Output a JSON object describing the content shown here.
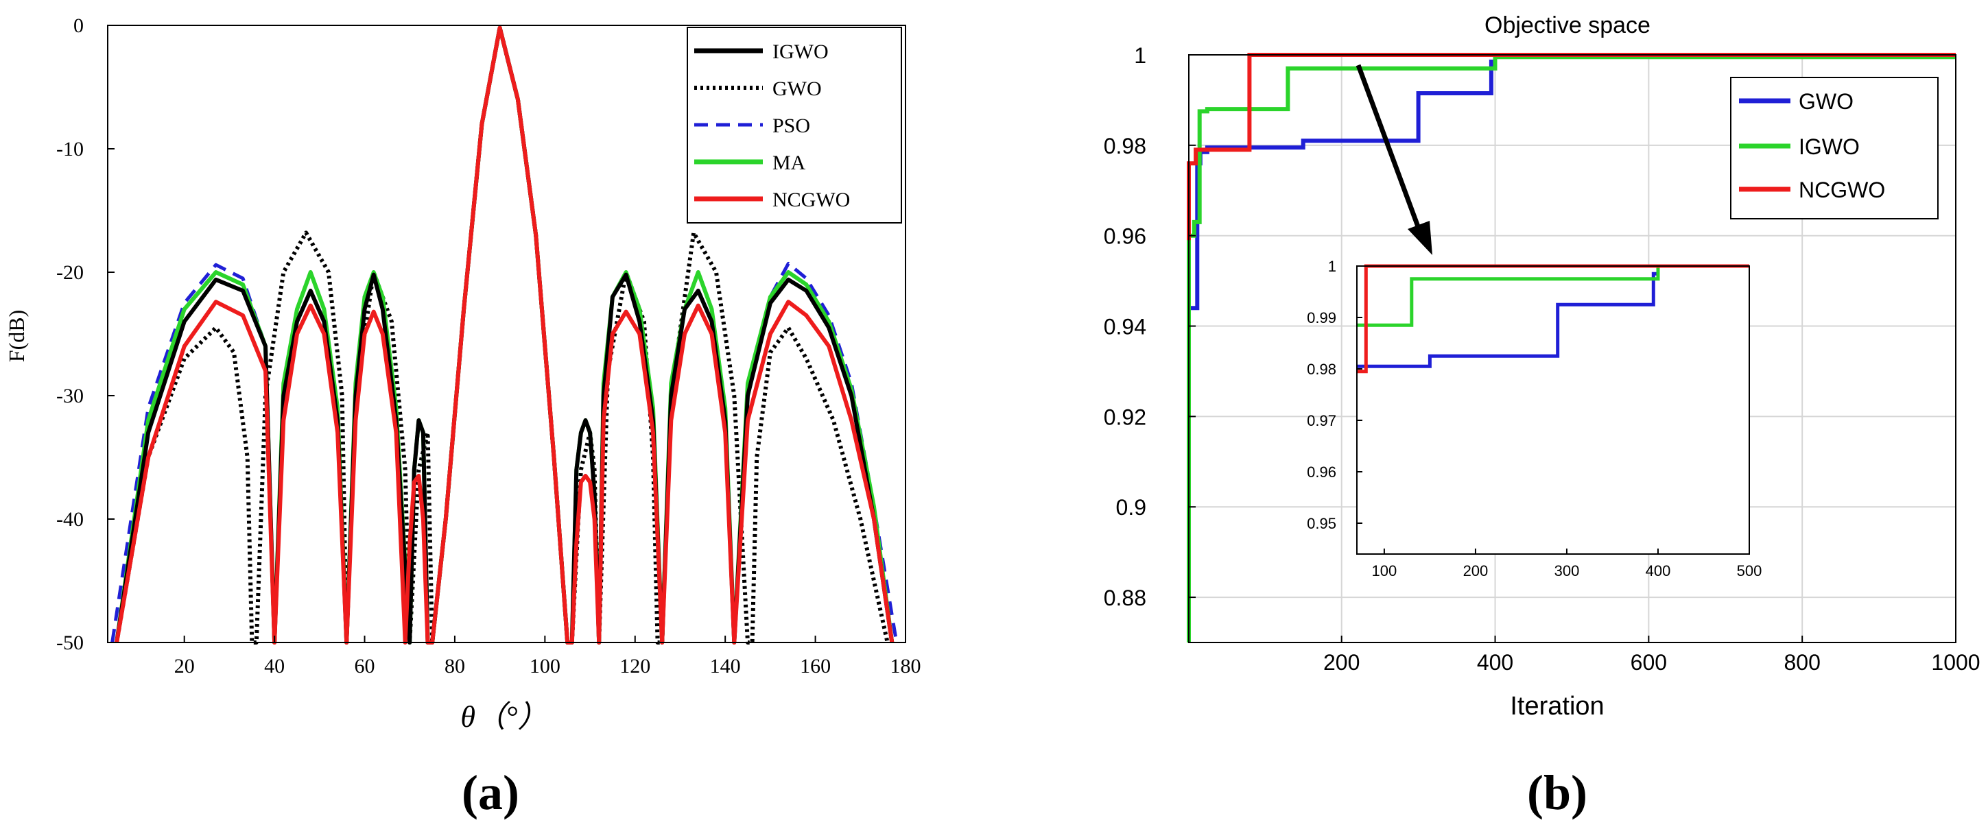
{
  "chart_data": [
    {
      "id": "a",
      "type": "line",
      "panel_label": "(a)",
      "title": "",
      "xlabel": "θ（°）",
      "ylabel": "F(dB)",
      "xlim": [
        3,
        180
      ],
      "ylim": [
        -50,
        0
      ],
      "xticks": [
        20,
        40,
        60,
        80,
        100,
        120,
        140,
        160,
        180
      ],
      "yticks": [
        0,
        -10,
        -20,
        -30,
        -40,
        -50
      ],
      "legend_position": "top-right",
      "series": [
        {
          "name": "IGWO",
          "color": "#000000",
          "dash": "solid",
          "width": 6,
          "x": [
            5,
            12,
            20,
            27,
            33,
            38,
            40,
            42,
            45,
            48,
            51,
            54,
            56,
            58,
            60,
            62,
            64,
            67,
            70,
            71,
            72,
            73,
            74,
            75,
            78,
            82,
            86,
            90,
            94,
            98,
            102,
            105,
            106,
            107,
            108,
            109,
            110,
            111,
            112,
            113,
            115,
            118,
            121,
            124,
            126,
            128,
            131,
            134,
            137,
            140,
            142,
            145,
            150,
            154,
            158,
            163,
            168,
            173,
            177
          ],
          "y": [
            -50,
            -33,
            -24,
            -20.6,
            -21.5,
            -26,
            -50,
            -30,
            -24,
            -21.5,
            -24,
            -32,
            -50,
            -30,
            -23,
            -20.2,
            -23,
            -32,
            -50,
            -36,
            -32,
            -33,
            -50,
            -50,
            -40,
            -23,
            -8,
            -0.2,
            -6,
            -17,
            -35,
            -50,
            -50,
            -36,
            -33,
            -32,
            -33,
            -38,
            -50,
            -30,
            -22,
            -20.2,
            -24,
            -32,
            -50,
            -30,
            -23,
            -21.5,
            -24,
            -32,
            -50,
            -30,
            -22.5,
            -20.6,
            -21.5,
            -24.5,
            -30,
            -40,
            -50
          ]
        },
        {
          "name": "GWO",
          "color": "#000000",
          "dash": "dotted",
          "width": 6,
          "x": [
            5,
            12,
            20,
            27,
            31,
            34,
            35,
            36,
            38,
            42,
            47,
            52,
            55,
            56,
            58,
            62,
            66,
            69,
            70,
            72,
            74,
            75,
            78,
            82,
            86,
            90,
            94,
            98,
            102,
            105,
            106,
            108,
            110,
            111,
            112,
            114,
            118,
            122,
            124,
            125,
            126,
            128,
            133,
            138,
            142,
            145,
            146,
            147,
            150,
            154,
            158,
            164,
            170,
            176
          ],
          "y": [
            -50,
            -35,
            -27,
            -24.5,
            -26.5,
            -35,
            -50,
            -50,
            -30,
            -20,
            -16.8,
            -20,
            -30,
            -50,
            -30,
            -20,
            -24,
            -36,
            -50,
            -36,
            -33,
            -50,
            -40,
            -23,
            -8,
            -0.2,
            -6,
            -17,
            -35,
            -50,
            -50,
            -36,
            -33,
            -36,
            -50,
            -28,
            -20,
            -24,
            -35,
            -50,
            -50,
            -30,
            -16.8,
            -20,
            -30,
            -50,
            -50,
            -35,
            -26.5,
            -24.5,
            -27,
            -32,
            -40,
            -50
          ]
        },
        {
          "name": "PSO",
          "color": "#1f1fd6",
          "dash": "dashed",
          "width": 5,
          "x": [
            4,
            12,
            20,
            27,
            33,
            38,
            40,
            42,
            45,
            48,
            51,
            54,
            56,
            58,
            60,
            62,
            64,
            67,
            70,
            71,
            72,
            73,
            74,
            75,
            78,
            82,
            86,
            90,
            94,
            98,
            102,
            105,
            106,
            107,
            108,
            109,
            110,
            111,
            112,
            113,
            115,
            118,
            121,
            124,
            126,
            128,
            131,
            134,
            137,
            140,
            142,
            145,
            150,
            154,
            158,
            163,
            168,
            173,
            178
          ],
          "y": [
            -50,
            -31,
            -22.5,
            -19.4,
            -20.5,
            -26,
            -50,
            -29,
            -23,
            -20,
            -23,
            -31,
            -50,
            -29,
            -22,
            -20,
            -22,
            -31,
            -50,
            -36,
            -32,
            -33,
            -50,
            -50,
            -40,
            -23,
            -8,
            -0.2,
            -6,
            -17,
            -35,
            -50,
            -50,
            -36,
            -33,
            -32,
            -33,
            -38,
            -50,
            -29,
            -22,
            -20,
            -23,
            -31,
            -50,
            -29,
            -23,
            -20,
            -23,
            -31,
            -50,
            -29,
            -22,
            -19.3,
            -20.5,
            -23.5,
            -29,
            -39,
            -50
          ]
        },
        {
          "name": "MA",
          "color": "#2bd42b",
          "dash": "solid",
          "width": 6,
          "x": [
            5,
            12,
            20,
            27,
            33,
            38,
            40,
            42,
            45,
            48,
            51,
            54,
            56,
            58,
            60,
            62,
            64,
            67,
            70,
            71,
            72,
            73,
            74,
            75,
            78,
            82,
            86,
            90,
            94,
            98,
            102,
            105,
            106,
            107,
            108,
            109,
            110,
            111,
            112,
            113,
            115,
            118,
            121,
            124,
            126,
            128,
            131,
            134,
            137,
            140,
            142,
            145,
            150,
            154,
            158,
            163,
            168,
            173,
            177
          ],
          "y": [
            -50,
            -32,
            -23,
            -20,
            -21,
            -26,
            -50,
            -29,
            -23,
            -20,
            -23,
            -31,
            -50,
            -29,
            -22,
            -20,
            -22,
            -31,
            -50,
            -36,
            -32,
            -33,
            -50,
            -50,
            -40,
            -23,
            -8,
            -0.2,
            -6,
            -17,
            -35,
            -50,
            -50,
            -36,
            -33,
            -32,
            -33,
            -38,
            -50,
            -29,
            -22,
            -20,
            -23,
            -31,
            -50,
            -29,
            -23,
            -20,
            -23,
            -31,
            -50,
            -29,
            -22,
            -20,
            -21,
            -24,
            -29.5,
            -39,
            -50
          ]
        },
        {
          "name": "NCGWO",
          "color": "#ee1c1c",
          "dash": "solid",
          "width": 6,
          "x": [
            5,
            12,
            20,
            27,
            33,
            38,
            40,
            42,
            45,
            48,
            51,
            54,
            56,
            58,
            60,
            62,
            64,
            67,
            69,
            70,
            71,
            72,
            73,
            74,
            75,
            78,
            82,
            86,
            90,
            94,
            98,
            102,
            105,
            106,
            107,
            108,
            109,
            110,
            111,
            112,
            113,
            115,
            118,
            121,
            124,
            126,
            128,
            131,
            134,
            137,
            140,
            142,
            145,
            150,
            154,
            158,
            163,
            168,
            173,
            177
          ],
          "y": [
            -50,
            -35,
            -26,
            -22.4,
            -23.5,
            -28,
            -50,
            -32,
            -25,
            -22.7,
            -25,
            -33,
            -50,
            -32,
            -25,
            -23.2,
            -25,
            -33,
            -50,
            -42,
            -37,
            -36.5,
            -40,
            -50,
            -50,
            -40,
            -23,
            -8,
            -0.2,
            -6,
            -17,
            -35,
            -50,
            -50,
            -42,
            -37,
            -36.5,
            -37,
            -40,
            -50,
            -32,
            -25,
            -23.2,
            -25,
            -33,
            -50,
            -32,
            -25,
            -22.7,
            -25,
            -33,
            -50,
            -32,
            -25,
            -22.4,
            -23.5,
            -26,
            -32,
            -40,
            -50
          ]
        }
      ]
    },
    {
      "id": "b",
      "type": "line",
      "panel_label": "(b)",
      "title": "Objective space",
      "xlabel": "Iteration",
      "ylabel": "",
      "xlim": [
        1,
        1000
      ],
      "ylim": [
        0.87,
        1.0
      ],
      "xticks": [
        200,
        400,
        600,
        800,
        1000
      ],
      "yticks": [
        1,
        0.98,
        0.96,
        0.94,
        0.92,
        0.9,
        0.88
      ],
      "ytick_labels": [
        "1",
        "0.98",
        "0.96",
        "0.94",
        "0.92",
        "0.9",
        "0.88"
      ],
      "grid": true,
      "legend_position": "top-right",
      "series": [
        {
          "name": "GWO",
          "color": "#1f1fd6",
          "width": 6,
          "x": [
            1,
            1,
            12,
            12,
            16,
            16,
            25,
            25,
            150,
            150,
            300,
            300,
            395,
            395,
            400,
            400,
            1000
          ],
          "y": [
            0.921,
            0.944,
            0.944,
            0.976,
            0.976,
            0.9785,
            0.9785,
            0.9795,
            0.9795,
            0.981,
            0.981,
            0.9915,
            0.9915,
            0.9985,
            0.9985,
            1.0,
            1.0
          ]
        },
        {
          "name": "IGWO",
          "color": "#2bd42b",
          "width": 6,
          "x": [
            1,
            1,
            8,
            8,
            15,
            15,
            25,
            25,
            130,
            130,
            400,
            400,
            1000
          ],
          "y": [
            0.87,
            0.96,
            0.96,
            0.963,
            0.963,
            0.9875,
            0.9875,
            0.988,
            0.988,
            0.997,
            0.997,
            0.9995,
            0.9995
          ]
        },
        {
          "name": "NCGWO",
          "color": "#ee1c1c",
          "width": 6,
          "x": [
            1,
            1,
            10,
            10,
            70,
            70,
            80,
            80,
            1000
          ],
          "y": [
            0.959,
            0.976,
            0.976,
            0.979,
            0.979,
            0.979,
            0.979,
            1.0,
            1.0
          ]
        }
      ],
      "inset": {
        "xlim": [
          70,
          500
        ],
        "ylim": [
          0.944,
          1.0
        ],
        "xticks": [
          100,
          200,
          300,
          400,
          500
        ],
        "yticks": [
          1,
          0.99,
          0.98,
          0.97,
          0.96,
          0.95
        ],
        "ytick_labels": [
          "1",
          "0.99",
          "0.98",
          "0.97",
          "0.96",
          "0.95"
        ],
        "series": [
          {
            "name": "GWO",
            "color": "#1f1fd6",
            "width": 5,
            "x": [
              70,
              150,
              150,
              290,
              290,
              395,
              395,
              400,
              400,
              500
            ],
            "y": [
              0.9805,
              0.9805,
              0.9825,
              0.9825,
              0.9925,
              0.9925,
              0.9985,
              0.9985,
              1.0,
              1.0
            ]
          },
          {
            "name": "IGWO",
            "color": "#2bd42b",
            "width": 5,
            "x": [
              70,
              130,
              130,
              400,
              400,
              500
            ],
            "y": [
              0.9885,
              0.9885,
              0.9975,
              0.9975,
              1.0,
              1.0
            ]
          },
          {
            "name": "NCGWO",
            "color": "#ee1c1c",
            "width": 5,
            "x": [
              70,
              80,
              80,
              500
            ],
            "y": [
              0.9795,
              0.9795,
              1.0,
              1.0
            ]
          }
        ]
      }
    }
  ]
}
